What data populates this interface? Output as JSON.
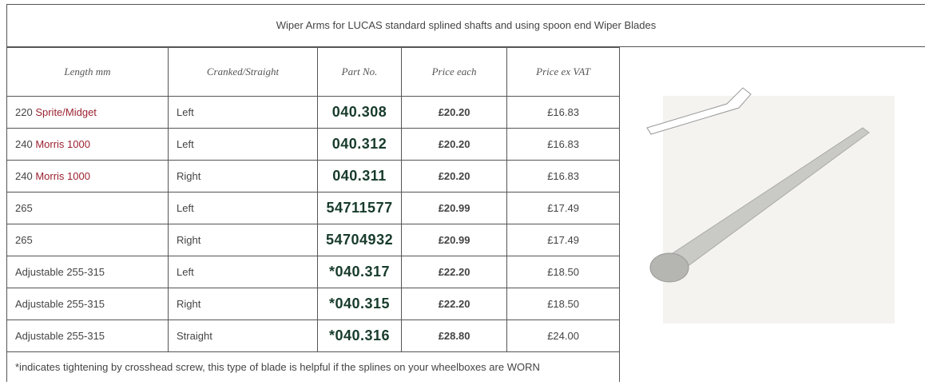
{
  "header": {
    "title": "Wiper Arms for LUCAS standard splined shafts and using spoon end Wiper Blades"
  },
  "table": {
    "columns": [
      "Length mm",
      "Cranked/Straight",
      "Part No.",
      "Price each",
      "Price ex VAT"
    ],
    "rows": [
      {
        "length": "220",
        "model": "Sprite/Midget",
        "side": "Left",
        "part": "040.308",
        "price": "£20.20",
        "price_ex_vat": "£16.83"
      },
      {
        "length": "240",
        "model": "Morris 1000",
        "side": "Left",
        "part": "040.312",
        "price": "£20.20",
        "price_ex_vat": "£16.83"
      },
      {
        "length": "240",
        "model": "Morris 1000",
        "side": "Right",
        "part": "040.311",
        "price": "£20.20",
        "price_ex_vat": "£16.83"
      },
      {
        "length": "265",
        "side": "Left",
        "part": "54711577",
        "price": "£20.99",
        "price_ex_vat": "£17.49"
      },
      {
        "length": "265",
        "side": "Right",
        "part": "54704932",
        "price": "£20.99",
        "price_ex_vat": "£17.49"
      },
      {
        "length": "Adjustable 255-315",
        "side": "Left",
        "part": "*040.317",
        "price": "£22.20",
        "price_ex_vat": "£18.50"
      },
      {
        "length": "Adjustable 255-315",
        "side": "Right",
        "part": "*040.315",
        "price": "£22.20",
        "price_ex_vat": "£18.50"
      },
      {
        "length": "Adjustable 255-315",
        "side": "Straight",
        "part": "*040.316",
        "price": "£28.80",
        "price_ex_vat": "£24.00"
      }
    ]
  },
  "footer": "*indicates tightening by crosshead screw, this type of blade is helpful if the splines on your wheelboxes are WORN"
}
